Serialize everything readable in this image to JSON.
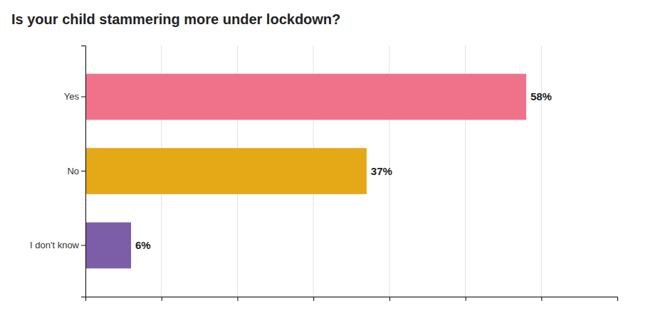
{
  "chart_data": {
    "type": "bar",
    "orientation": "horizontal",
    "title": "Is your child stammering more under lockdown?",
    "categories": [
      "I don't know",
      "No",
      "Yes"
    ],
    "values": [
      6,
      37,
      58
    ],
    "value_labels": [
      "6%",
      "37%",
      "58%"
    ],
    "colors": [
      "#7B5EA7",
      "#E5A817",
      "#F0728A"
    ],
    "xlim": [
      0,
      70
    ],
    "xticks": [
      10,
      20,
      30,
      40,
      50,
      60
    ],
    "grid": true,
    "data_labels": true,
    "tick_labels": "y"
  }
}
